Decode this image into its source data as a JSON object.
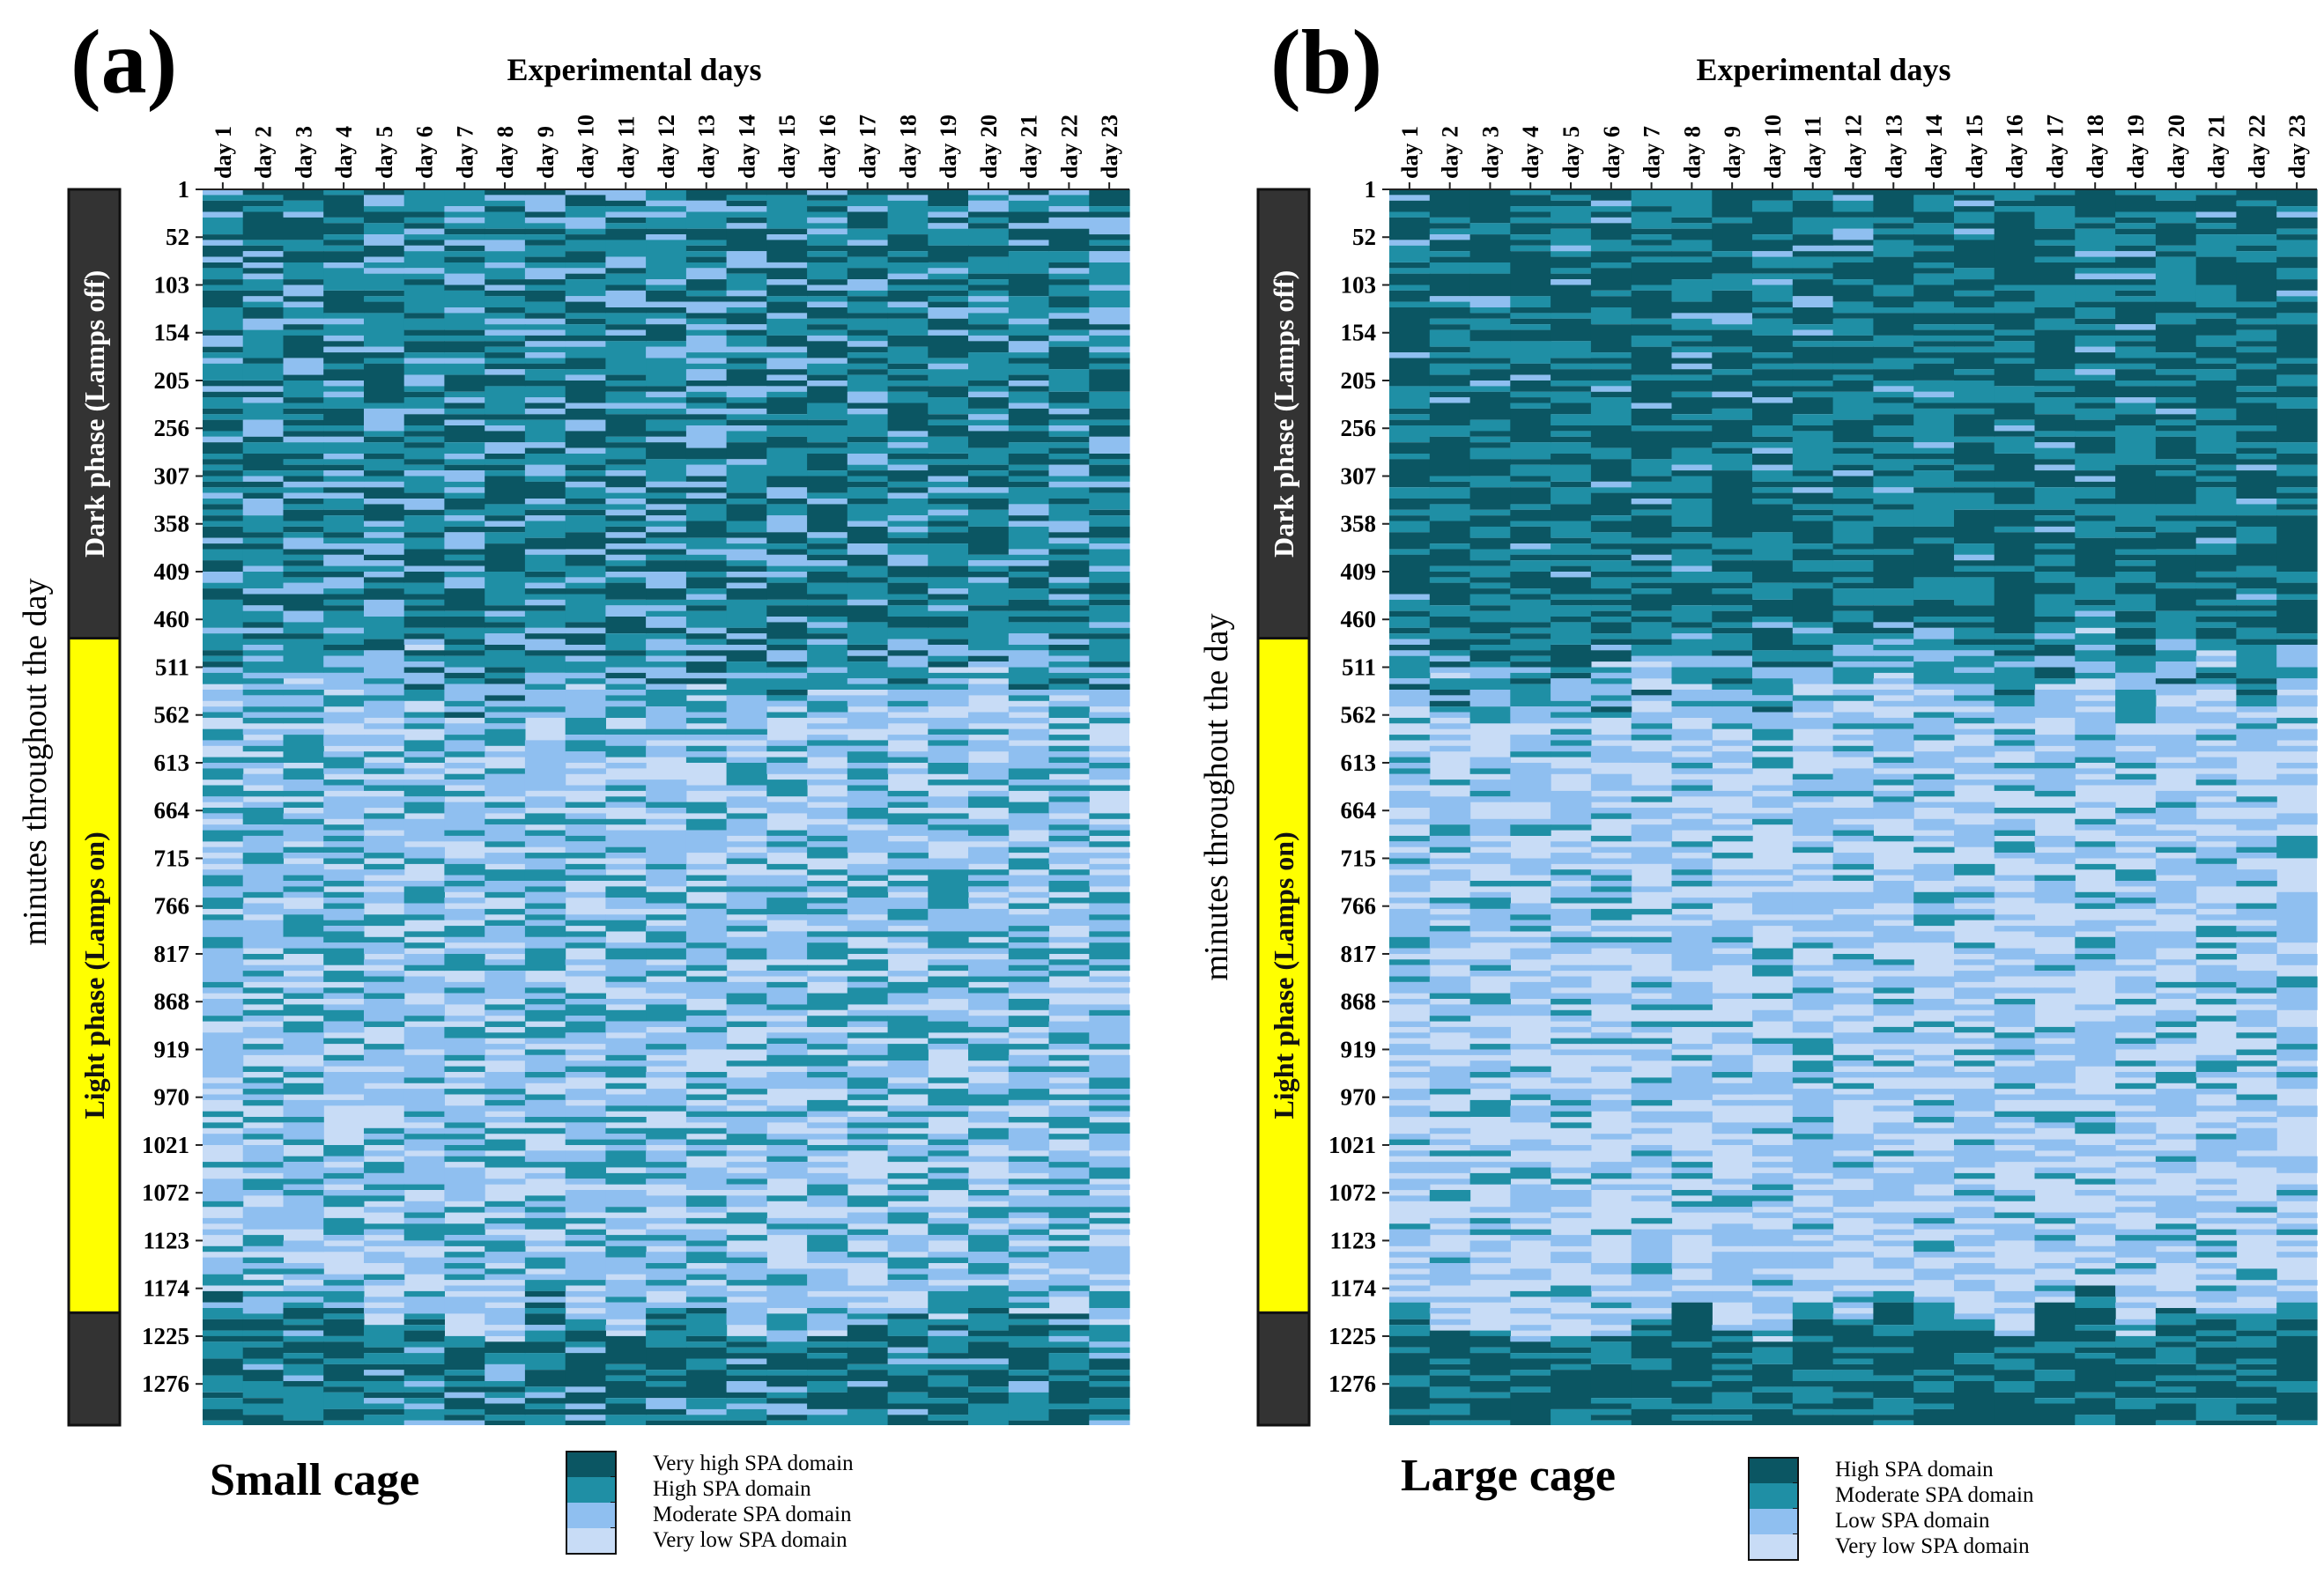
{
  "chart_data": [
    {
      "type": "heatmap",
      "panel_label": "(a)",
      "title": "Small cage",
      "xlabel": "Experimental days",
      "ylabel": "minutes throughout the day",
      "x_tick_labels": [
        "day 1",
        "day 2",
        "day 3",
        "day 4",
        "day 5",
        "day 6",
        "day 7",
        "day 8",
        "day 9",
        "day 10",
        "day 11",
        "day 12",
        "day 13",
        "day 14",
        "day 15",
        "day 16",
        "day 17",
        "day 18",
        "day 19",
        "day 20",
        "day 21",
        "day 22",
        "day 23"
      ],
      "y_tick_labels": [
        "1",
        "52",
        "103",
        "154",
        "205",
        "256",
        "307",
        "358",
        "409",
        "460",
        "511",
        "562",
        "613",
        "664",
        "715",
        "766",
        "817",
        "868",
        "919",
        "970",
        "1021",
        "1072",
        "1123",
        "1174",
        "1225",
        "1276"
      ],
      "y_tick_values": [
        1,
        52,
        103,
        154,
        205,
        256,
        307,
        358,
        409,
        460,
        511,
        562,
        613,
        664,
        715,
        766,
        817,
        868,
        919,
        970,
        1021,
        1072,
        1123,
        1174,
        1225,
        1276
      ],
      "y_range": [
        1,
        1320
      ],
      "phases": [
        {
          "label": "Dark phase (Lamps off)",
          "start": 1,
          "end": 480,
          "color": "#333333"
        },
        {
          "label": "Light phase (Lamps on)",
          "start": 480,
          "end": 1200,
          "color": "#ffff00"
        },
        {
          "label": "",
          "start": 1200,
          "end": 1320,
          "color": "#333333"
        }
      ],
      "legend": [
        {
          "label": "Very high SPA domain",
          "color": "#0b5663"
        },
        {
          "label": "High SPA domain",
          "color": "#1f8fa5"
        },
        {
          "label": "Moderate SPA domain",
          "color": "#8fbff0"
        },
        {
          "label": "Very low SPA domain",
          "color": "#c8dcf6"
        }
      ],
      "pattern_note_levels": {
        "dark_phase_mean_level": 2.2,
        "light_phase_mean_level": 1.0
      }
    },
    {
      "type": "heatmap",
      "panel_label": "(b)",
      "title": "Large cage",
      "xlabel": "Experimental days",
      "ylabel": "minutes throughout the day",
      "x_tick_labels": [
        "day 1",
        "day 2",
        "day 3",
        "day 4",
        "day 5",
        "day 6",
        "day 7",
        "day 8",
        "day 9",
        "day 10",
        "day 11",
        "day 12",
        "day 13",
        "day 14",
        "day 15",
        "day 16",
        "day 17",
        "day 18",
        "day 19",
        "day 20",
        "day 21",
        "day 22",
        "day 23"
      ],
      "y_tick_labels": [
        "1",
        "52",
        "103",
        "154",
        "205",
        "256",
        "307",
        "358",
        "409",
        "460",
        "511",
        "562",
        "613",
        "664",
        "715",
        "766",
        "817",
        "868",
        "919",
        "970",
        "1021",
        "1072",
        "1123",
        "1174",
        "1225",
        "1276"
      ],
      "y_tick_values": [
        1,
        52,
        103,
        154,
        205,
        256,
        307,
        358,
        409,
        460,
        511,
        562,
        613,
        664,
        715,
        766,
        817,
        868,
        919,
        970,
        1021,
        1072,
        1123,
        1174,
        1225,
        1276
      ],
      "y_range": [
        1,
        1320
      ],
      "phases": [
        {
          "label": "Dark phase (Lamps off)",
          "start": 1,
          "end": 480,
          "color": "#333333"
        },
        {
          "label": "Light phase (Lamps on)",
          "start": 480,
          "end": 1200,
          "color": "#ffff00"
        },
        {
          "label": "",
          "start": 1200,
          "end": 1320,
          "color": "#333333"
        }
      ],
      "legend": [
        {
          "label": "High SPA domain",
          "color": "#0b5663"
        },
        {
          "label": "Moderate SPA domain",
          "color": "#1f8fa5"
        },
        {
          "label": "Low SPA domain",
          "color": "#8fbff0"
        },
        {
          "label": "Very low SPA domain",
          "color": "#c8dcf6"
        }
      ],
      "pattern_note_levels": {
        "dark_phase_mean_level": 2.6,
        "light_phase_mean_level": 0.6
      }
    }
  ]
}
